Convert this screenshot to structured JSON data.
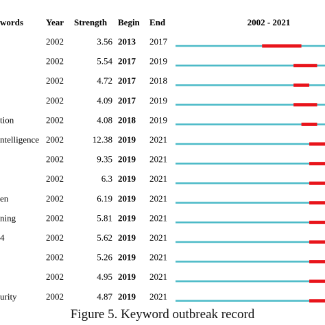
{
  "caption": "Figure 5. Keyword outbreak record",
  "chart_data": {
    "type": "table",
    "columns": [
      "words",
      "Year",
      "Strength",
      "Begin",
      "End",
      "2002 - 2021"
    ],
    "range_start": 2002,
    "range_end": 2021,
    "base_color": "#4bbac7",
    "burst_color": "#e8141b",
    "rows": [
      {
        "keyword": "",
        "year": "2002",
        "strength": "3.56",
        "begin": "2013",
        "end": "2017"
      },
      {
        "keyword": "",
        "year": "2002",
        "strength": "5.54",
        "begin": "2017",
        "end": "2019"
      },
      {
        "keyword": "",
        "year": "2002",
        "strength": "4.72",
        "begin": "2017",
        "end": "2018"
      },
      {
        "keyword": "",
        "year": "2002",
        "strength": "4.09",
        "begin": "2017",
        "end": "2019"
      },
      {
        "keyword": "tion",
        "year": "2002",
        "strength": "4.08",
        "begin": "2018",
        "end": "2019"
      },
      {
        "keyword": "ntelligence",
        "year": "2002",
        "strength": "12.38",
        "begin": "2019",
        "end": "2021"
      },
      {
        "keyword": "",
        "year": "2002",
        "strength": "9.35",
        "begin": "2019",
        "end": "2021"
      },
      {
        "keyword": "",
        "year": "2002",
        "strength": "6.3",
        "begin": "2019",
        "end": "2021"
      },
      {
        "keyword": "en",
        "year": "2002",
        "strength": "6.19",
        "begin": "2019",
        "end": "2021"
      },
      {
        "keyword": "ning",
        "year": "2002",
        "strength": "5.81",
        "begin": "2019",
        "end": "2021"
      },
      {
        "keyword": "4",
        "year": "2002",
        "strength": "5.62",
        "begin": "2019",
        "end": "2021"
      },
      {
        "keyword": "",
        "year": "2002",
        "strength": "5.26",
        "begin": "2019",
        "end": "2021"
      },
      {
        "keyword": "",
        "year": "2002",
        "strength": "4.95",
        "begin": "2019",
        "end": "2021"
      },
      {
        "keyword": "urity",
        "year": "2002",
        "strength": "4.87",
        "begin": "2019",
        "end": "2021"
      }
    ]
  }
}
